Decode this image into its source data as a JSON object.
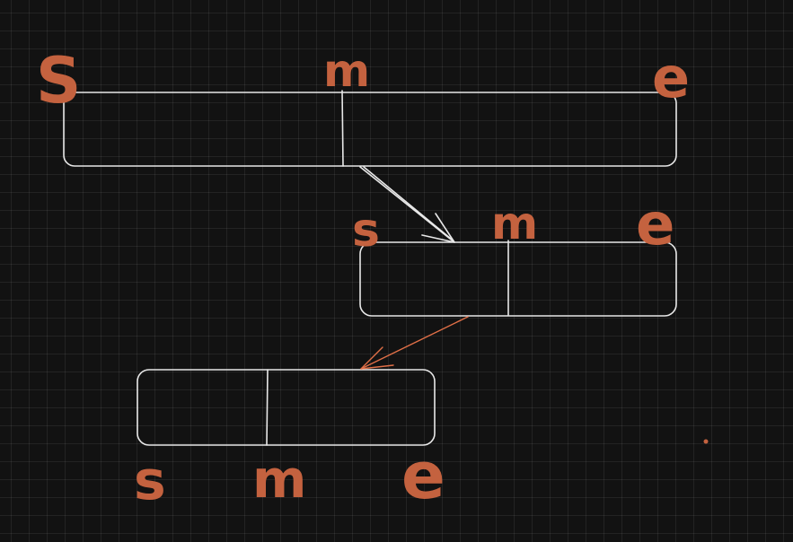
{
  "colors": {
    "background": "#121212",
    "stroke": "#e8e8e8",
    "ink": "#c4623f",
    "accent_arrow": "#e06f47"
  },
  "levels": [
    {
      "s": "S",
      "m": "m",
      "e": "e"
    },
    {
      "s": "s",
      "m": "m",
      "e": "e"
    },
    {
      "s": "s",
      "m": "m",
      "e": "e"
    }
  ]
}
